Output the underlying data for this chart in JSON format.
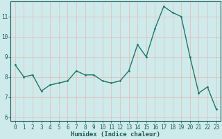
{
  "x": [
    0,
    1,
    2,
    3,
    4,
    5,
    6,
    7,
    8,
    9,
    10,
    11,
    12,
    13,
    14,
    15,
    16,
    17,
    18,
    19,
    20,
    21,
    22,
    23
  ],
  "y": [
    8.6,
    8.0,
    8.1,
    7.3,
    7.6,
    7.7,
    7.8,
    8.3,
    8.1,
    8.1,
    7.8,
    7.7,
    7.8,
    8.3,
    9.6,
    9.0,
    10.4,
    11.5,
    11.2,
    11.0,
    9.0,
    7.2,
    7.5,
    6.4
  ],
  "line_color": "#1a7a6a",
  "marker": "D",
  "marker_size": 1.5,
  "bg_color": "#ceeaea",
  "grid_color_pink": "#e8b8b8",
  "xlabel": "Humidex (Indice chaleur)",
  "xlim": [
    -0.5,
    23.5
  ],
  "ylim": [
    5.8,
    11.75
  ],
  "yticks": [
    6,
    7,
    8,
    9,
    10,
    11
  ],
  "xticks": [
    0,
    1,
    2,
    3,
    4,
    5,
    6,
    7,
    8,
    9,
    10,
    11,
    12,
    13,
    14,
    15,
    16,
    17,
    18,
    19,
    20,
    21,
    22,
    23
  ],
  "xlabel_fontsize": 6.5,
  "tick_fontsize": 5.5,
  "linewidth": 1.0
}
